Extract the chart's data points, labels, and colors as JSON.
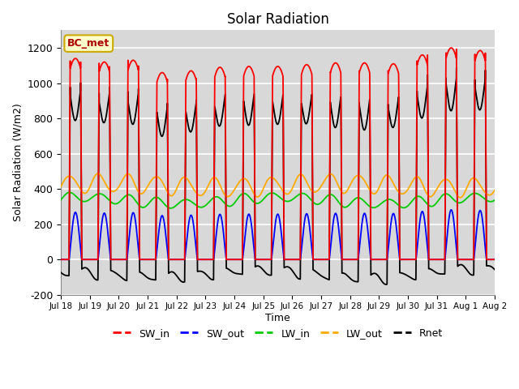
{
  "title": "Solar Radiation",
  "ylabel": "Solar Radiation (W/m2)",
  "xlabel": "Time",
  "ylim": [
    -200,
    1300
  ],
  "yticks": [
    -200,
    0,
    200,
    400,
    600,
    800,
    1000,
    1200
  ],
  "legend_label": "BC_met",
  "series": [
    "SW_in",
    "SW_out",
    "LW_in",
    "LW_out",
    "Rnet"
  ],
  "colors": {
    "SW_in": "#ff0000",
    "SW_out": "#0000ff",
    "LW_in": "#00cc00",
    "LW_out": "#ffaa00",
    "Rnet": "#000000"
  },
  "n_days": 15,
  "points_per_day": 288,
  "sw_in_peaks": [
    1140,
    1120,
    1130,
    1060,
    1070,
    1090,
    1095,
    1095,
    1105,
    1115,
    1115,
    1110,
    1160,
    1200,
    1185
  ],
  "bg_color": "#d8d8d8",
  "grid_color": "#ffffff",
  "tick_labels": [
    "Jul 18",
    "Jul 19",
    "Jul 20",
    "Jul 21",
    "Jul 22",
    "Jul 23",
    "Jul 24",
    "Jul 25",
    "Jul 26",
    "Jul 27",
    "Jul 28",
    "Jul 29",
    "Jul 30",
    "Jul 31",
    "Aug 1",
    "Aug 2"
  ]
}
